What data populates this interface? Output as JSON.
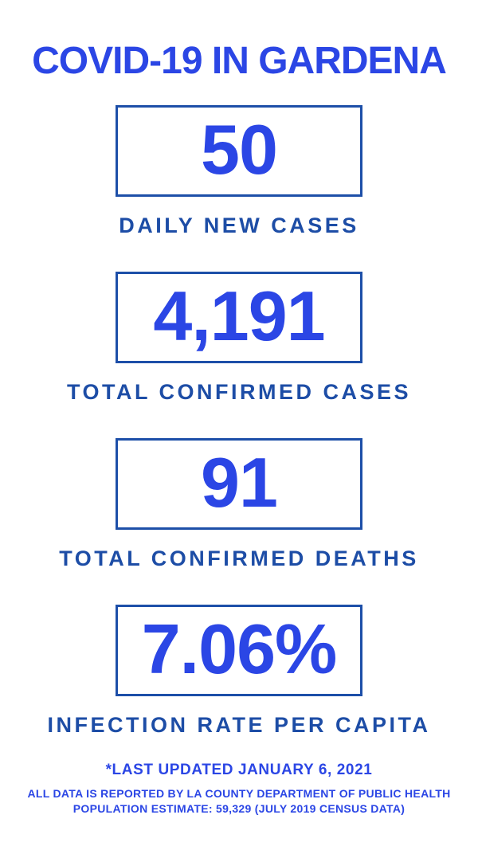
{
  "title": "COVID-19 IN GARDENA",
  "colors": {
    "bright_blue": "#2b46e5",
    "navy_label": "#1d4da6",
    "navy_border": "#1d4fa8",
    "background": "#ffffff"
  },
  "stats": [
    {
      "value": "50",
      "label": "DAILY NEW CASES"
    },
    {
      "value": "4,191",
      "label": "TOTAL CONFIRMED CASES"
    },
    {
      "value": "91",
      "label": "TOTAL CONFIRMED DEATHS"
    },
    {
      "value": "7.06%",
      "label": "INFECTION RATE PER CAPITA"
    }
  ],
  "footer": {
    "updated": "*LAST UPDATED JANUARY 6, 2021",
    "source": "ALL DATA IS REPORTED BY LA COUNTY DEPARTMENT OF PUBLIC HEALTH",
    "population": "POPULATION ESTIMATE: 59,329 (JULY 2019 CENSUS DATA)"
  }
}
